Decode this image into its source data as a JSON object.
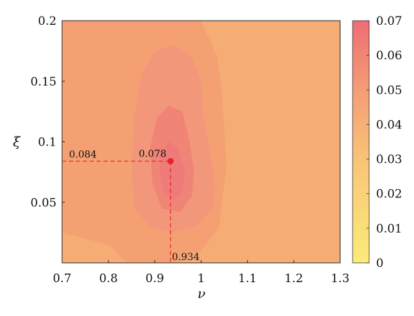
{
  "chart_data": {
    "type": "heatmap",
    "title": "",
    "xlabel": "ν",
    "ylabel": "ξ",
    "xlim": [
      0.7,
      1.3
    ],
    "ylim": [
      0.0,
      0.2
    ],
    "x_ticks": [
      "0.7",
      "0.8",
      "0.9",
      "1",
      "1.1",
      "1.2",
      "1.3"
    ],
    "y_ticks": [
      "0.05",
      "0.1",
      "0.15",
      "0.2"
    ],
    "colorbar": {
      "min": 0,
      "max": 0.07,
      "ticks": [
        "0",
        "0.01",
        "0.02",
        "0.03",
        "0.04",
        "0.05",
        "0.06",
        "0.07"
      ],
      "color_low": "#fbeb7a",
      "color_high": "#ee6d74"
    },
    "contour_levels": [
      {
        "level": 0.015,
        "color": "#fbe27c",
        "region": [
          [
            1.115,
            0.2
          ],
          [
            1.105,
            0.17
          ],
          [
            1.11,
            0.14
          ],
          [
            1.1,
            0.11
          ],
          [
            1.11,
            0.08
          ],
          [
            1.12,
            0.04
          ],
          [
            1.13,
            0.0
          ]
        ]
      },
      {
        "level": 0.025,
        "color": "#f9ca78",
        "region": [
          [
            1.06,
            0.2
          ],
          [
            1.07,
            0.17
          ],
          [
            1.055,
            0.14
          ],
          [
            1.075,
            0.11
          ],
          [
            1.09,
            0.08
          ],
          [
            1.08,
            0.05
          ],
          [
            1.095,
            0.02
          ],
          [
            1.1,
            0.0
          ]
        ]
      },
      {
        "level": 0.035,
        "color": "#f6ac75",
        "region": [
          [
            1.0,
            0.2
          ],
          [
            1.035,
            0.17
          ],
          [
            1.045,
            0.14
          ],
          [
            1.05,
            0.11
          ],
          [
            1.055,
            0.08
          ],
          [
            1.045,
            0.05
          ],
          [
            1.04,
            0.03
          ],
          [
            1.0,
            0.01
          ],
          [
            0.95,
            0.0
          ],
          [
            0.84,
            0.0
          ],
          [
            0.8,
            0.015
          ],
          [
            0.75,
            0.02
          ],
          [
            0.7,
            0.025
          ]
        ]
      },
      {
        "level": 0.045,
        "color": "#f3977a",
        "region": [
          [
            0.9,
            0.175
          ],
          [
            0.94,
            0.18
          ],
          [
            0.98,
            0.17
          ],
          [
            1.0,
            0.15
          ],
          [
            1.005,
            0.12
          ],
          [
            1.02,
            0.09
          ],
          [
            1.03,
            0.065
          ],
          [
            1.025,
            0.045
          ],
          [
            0.99,
            0.03
          ],
          [
            0.94,
            0.025
          ],
          [
            0.89,
            0.03
          ],
          [
            0.855,
            0.045
          ],
          [
            0.85,
            0.08
          ],
          [
            0.855,
            0.12
          ],
          [
            0.87,
            0.155
          ]
        ]
      },
      {
        "level": 0.055,
        "color": "#f08477",
        "region": [
          [
            0.93,
            0.13
          ],
          [
            0.96,
            0.125
          ],
          [
            0.975,
            0.1
          ],
          [
            0.985,
            0.075
          ],
          [
            0.98,
            0.055
          ],
          [
            0.955,
            0.042
          ],
          [
            0.915,
            0.045
          ],
          [
            0.895,
            0.065
          ],
          [
            0.89,
            0.095
          ],
          [
            0.905,
            0.12
          ]
        ]
      },
      {
        "level": 0.06,
        "color": "#ee7a7a",
        "region": [
          [
            0.93,
            0.1
          ],
          [
            0.95,
            0.095
          ],
          [
            0.965,
            0.075
          ],
          [
            0.96,
            0.058
          ],
          [
            0.94,
            0.052
          ],
          [
            0.92,
            0.058
          ],
          [
            0.91,
            0.075
          ],
          [
            0.915,
            0.092
          ]
        ]
      }
    ],
    "background_color": "#f5a073",
    "optimum": {
      "nu": 0.934,
      "xi": 0.084,
      "value": 0.078,
      "color": "#e8242a"
    },
    "annotations": [
      {
        "text": "0.084",
        "anchor": "y-axis"
      },
      {
        "text": "0.078",
        "anchor": "point"
      },
      {
        "text": "0.934",
        "anchor": "x-axis"
      }
    ]
  }
}
